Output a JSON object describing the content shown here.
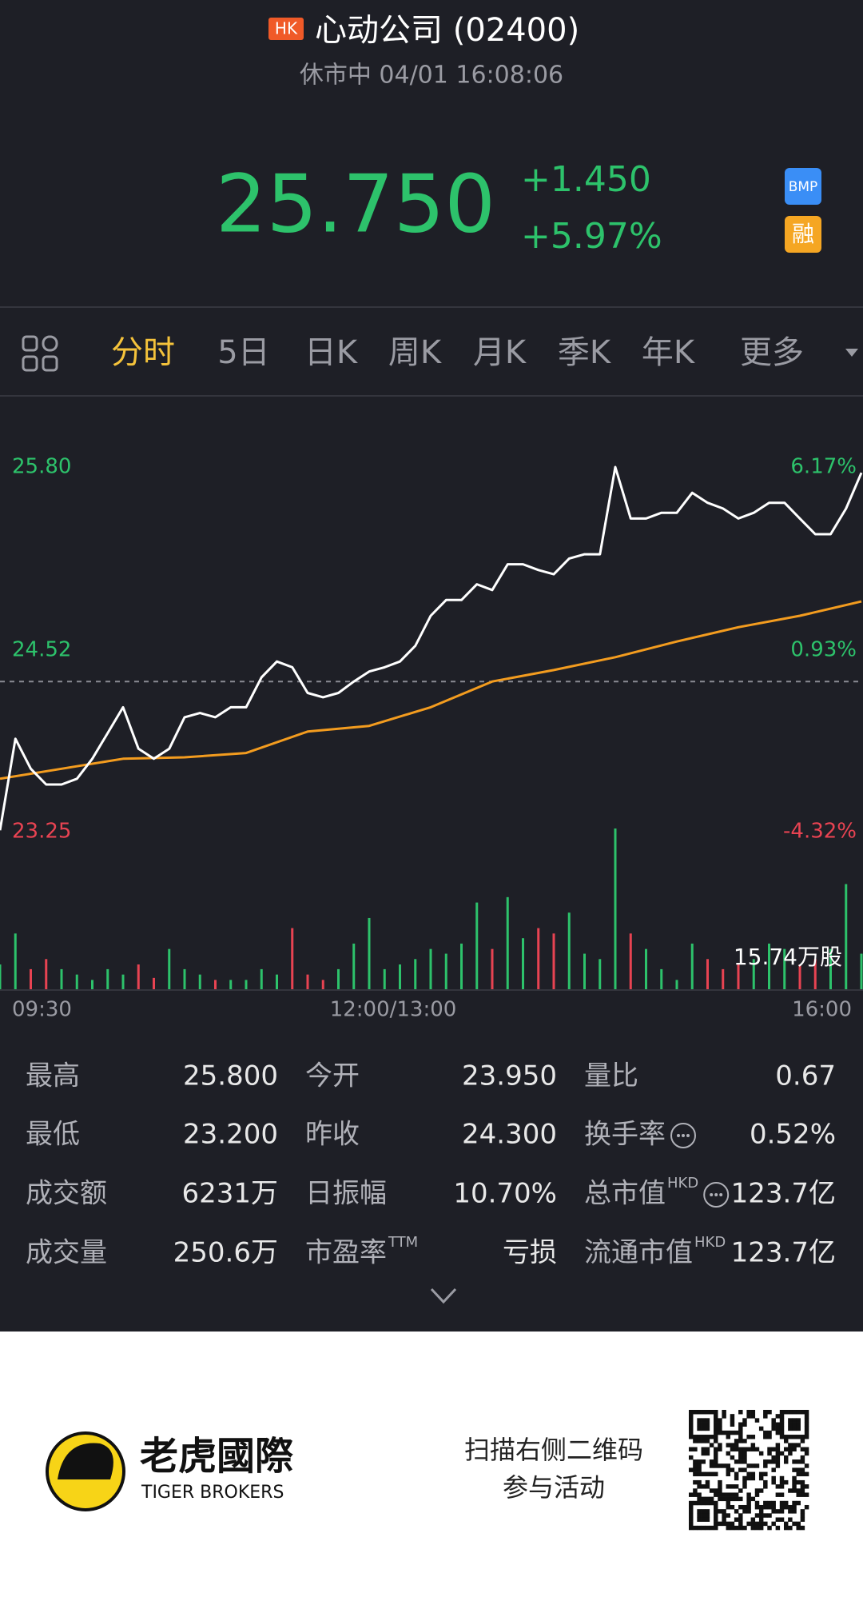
{
  "header": {
    "badge": "HK",
    "title": "心动公司 (02400)",
    "status": "休市中 04/01 16:08:06"
  },
  "quote": {
    "price": "25.750",
    "change": "+1.450",
    "change_pct": "+5.97%",
    "badges": [
      "BMP",
      "融"
    ]
  },
  "tabs": [
    "分时",
    "5日",
    "日K",
    "周K",
    "月K",
    "季K",
    "年K",
    "更多"
  ],
  "chart_data": {
    "type": "line",
    "series": [
      {
        "color": "#ffffff",
        "values": [
          23.26,
          23.9,
          23.69,
          23.58,
          23.58,
          23.62,
          23.76,
          23.94,
          24.12,
          23.83,
          23.76,
          23.83,
          24.05,
          24.08,
          24.05,
          24.12,
          24.12,
          24.33,
          24.44,
          24.4,
          24.22,
          24.19,
          24.22,
          24.3,
          24.37,
          24.4,
          24.44,
          24.55,
          24.76,
          24.87,
          24.87,
          24.98,
          24.94,
          25.12,
          25.12,
          25.08,
          25.05,
          25.16,
          25.19,
          25.19,
          25.8,
          25.44,
          25.44,
          25.48,
          25.48,
          25.62,
          25.55,
          25.51,
          25.44,
          25.48,
          25.55,
          25.55,
          25.44,
          25.33,
          25.33,
          25.51,
          25.76
        ]
      },
      {
        "color": "#f39c1f",
        "values": [
          23.62,
          23.69,
          23.76,
          23.77,
          23.8,
          23.95,
          23.99,
          24.12,
          24.3,
          24.38,
          24.47,
          24.58,
          24.68,
          24.76,
          24.86
        ]
      }
    ],
    "ylim": [
      23.25,
      25.8
    ],
    "yticks": [
      {
        "value": 25.8,
        "label": "25.80"
      },
      {
        "value": 24.52,
        "label": "24.52"
      },
      {
        "value": 23.25,
        "label": "23.25"
      }
    ],
    "pct_ticks": [
      {
        "value": 6.17,
        "label": "6.17%"
      },
      {
        "value": 0.93,
        "label": "0.93%"
      },
      {
        "value": -4.32,
        "label": "-4.32%"
      }
    ],
    "prev_close": 24.3,
    "xtick_labels": [
      "09:30",
      "12:00/13:00",
      "16:00"
    ],
    "volume": {
      "ylim": [
        0,
        24
      ],
      "label": "15.74万股",
      "up_color": "#2dc26b",
      "down_color": "#e84352",
      "values": [
        3.8,
        8.4,
        3.1,
        4.6,
        3.1,
        2.3,
        1.5,
        3.1,
        2.3,
        3.8,
        1.8,
        6.1,
        3.1,
        2.3,
        1.5,
        1.5,
        1.5,
        3.1,
        2.3,
        9.2,
        2.3,
        1.5,
        3.1,
        6.9,
        10.7,
        3.1,
        3.8,
        4.6,
        6.1,
        5.4,
        6.9,
        13.0,
        6.1,
        13.8,
        7.7,
        9.2,
        8.4,
        11.5,
        5.4,
        4.6,
        24.0,
        8.4,
        6.1,
        3.1,
        1.5,
        6.9,
        4.6,
        3.1,
        3.8,
        4.6,
        6.9,
        6.1,
        3.8,
        4.6,
        6.1,
        15.74,
        5.4
      ]
    }
  },
  "stats": {
    "rows": [
      [
        {
          "label": "最高",
          "value": "25.800"
        },
        {
          "label": "今开",
          "value": "23.950"
        },
        {
          "label": "量比",
          "value": "0.67"
        }
      ],
      [
        {
          "label": "最低",
          "value": "23.200"
        },
        {
          "label": "昨收",
          "value": "24.300"
        },
        {
          "label": "换手率",
          "value": "0.52%"
        }
      ],
      [
        {
          "label": "成交额",
          "value": "6231万"
        },
        {
          "label": "日振幅",
          "value": "10.70%"
        },
        {
          "label": "总市值",
          "sup": "HKD",
          "value": "123.7亿"
        }
      ],
      [
        {
          "label": "成交量",
          "value": "250.6万"
        },
        {
          "label": "市盈率",
          "sup": "TTM",
          "value": "亏损"
        },
        {
          "label": "流通市值",
          "sup": "HKD",
          "value": "123.7亿"
        }
      ]
    ]
  },
  "footer": {
    "brand": "老虎國際",
    "brand_en": "TIGER BROKERS",
    "cta": [
      "扫描右侧二维码",
      "参与活动"
    ]
  }
}
